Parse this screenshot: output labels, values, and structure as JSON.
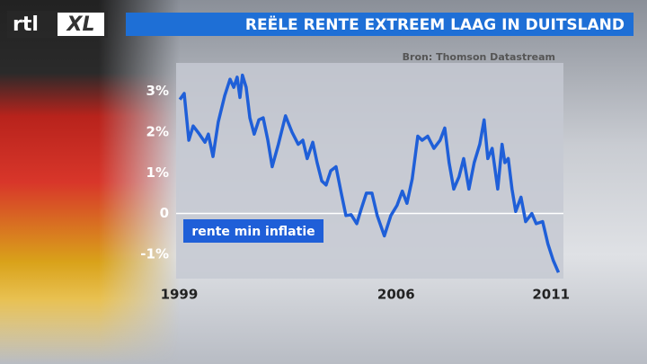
{
  "logo": {
    "left": "rtl",
    "right": "XL"
  },
  "chart_data": {
    "type": "line",
    "title": "REËLE RENTE EXTREEM LAAG IN DUITSLAND",
    "source": "Bron: Thomson Datastream",
    "xlim": [
      1998.9,
      2011.4
    ],
    "xticks": [
      1999,
      2006,
      2011
    ],
    "ylim": [
      -1.6,
      3.7
    ],
    "yticks": [
      {
        "value": 3,
        "label": "3%"
      },
      {
        "value": 2,
        "label": "2%"
      },
      {
        "value": 1,
        "label": "1%"
      },
      0,
      {
        "value": -1,
        "label": "-1%"
      }
    ],
    "zero_line": true,
    "x": [
      1999.02,
      1999.16,
      1999.31,
      1999.45,
      1999.65,
      1999.83,
      1999.94,
      2000.09,
      2000.26,
      2000.47,
      2000.64,
      2000.76,
      2000.87,
      2000.96,
      2001.04,
      2001.16,
      2001.28,
      2001.42,
      2001.57,
      2001.71,
      2001.86,
      2002.0,
      2002.2,
      2002.43,
      2002.64,
      2002.84,
      2002.99,
      2003.13,
      2003.31,
      2003.45,
      2003.6,
      2003.74,
      2003.89,
      2004.06,
      2004.23,
      2004.38,
      2004.55,
      2004.73,
      2004.87,
      2005.04,
      2005.22,
      2005.39,
      2005.62,
      2005.83,
      2006.03,
      2006.2,
      2006.35,
      2006.52,
      2006.7,
      2006.84,
      2007.02,
      2007.22,
      2007.42,
      2007.57,
      2007.71,
      2007.86,
      2008.03,
      2008.18,
      2008.35,
      2008.52,
      2008.7,
      2008.84,
      2008.96,
      2009.1,
      2009.28,
      2009.42,
      2009.51,
      2009.62,
      2009.74,
      2009.86,
      2010.03,
      2010.18,
      2010.38,
      2010.52,
      2010.73,
      2010.9,
      2011.07,
      2011.24
    ],
    "series": [
      {
        "name": "rente min inflatie",
        "color": "#1f5fd8",
        "values": [
          2.8,
          2.95,
          1.8,
          2.15,
          1.95,
          1.75,
          1.95,
          1.4,
          2.25,
          2.9,
          3.3,
          3.1,
          3.35,
          2.85,
          3.4,
          3.1,
          2.35,
          1.95,
          2.3,
          2.35,
          1.8,
          1.15,
          1.7,
          2.4,
          2.0,
          1.7,
          1.8,
          1.35,
          1.75,
          1.25,
          0.8,
          0.7,
          1.05,
          1.15,
          0.5,
          -0.05,
          -0.03,
          -0.25,
          0.1,
          0.5,
          0.5,
          -0.05,
          -0.55,
          -0.05,
          0.2,
          0.55,
          0.25,
          0.85,
          1.9,
          1.8,
          1.9,
          1.6,
          1.8,
          2.1,
          1.25,
          0.6,
          0.9,
          1.35,
          0.6,
          1.25,
          1.7,
          2.3,
          1.35,
          1.6,
          0.6,
          1.7,
          1.25,
          1.35,
          0.6,
          0.05,
          0.4,
          -0.2,
          0,
          -0.25,
          -0.2,
          -0.75,
          -1.15,
          -1.45
        ]
      }
    ]
  }
}
